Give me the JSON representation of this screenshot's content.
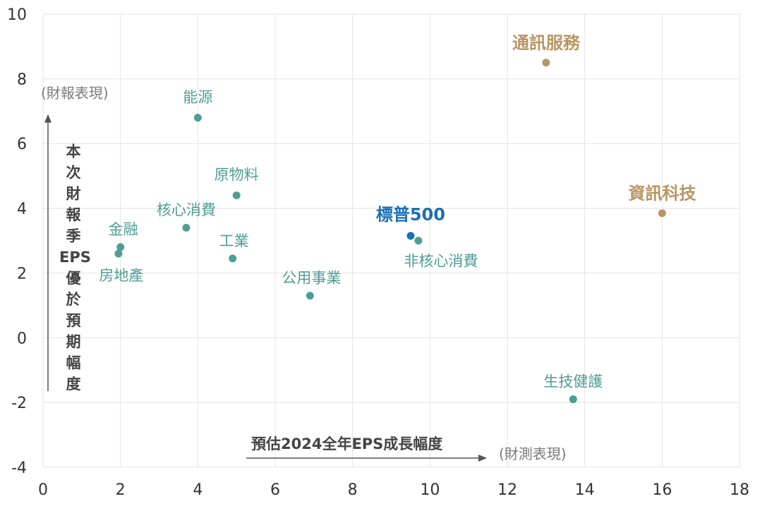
{
  "chart_data": {
    "type": "scatter",
    "xlabel": "預估2024全年EPS成長幅度",
    "xlabel_note": "(財測表現)",
    "ylabel": "本次財報季EPS優於預期幅度",
    "ylabel_note": "(財報表現)",
    "xlim": [
      0,
      18
    ],
    "ylim": [
      -4,
      10
    ],
    "x_ticks": [
      "0",
      "2",
      "4",
      "6",
      "8",
      "10",
      "12",
      "14",
      "16",
      "18"
    ],
    "y_ticks": [
      "10",
      "8",
      "6",
      "4",
      "2",
      "0",
      "-2",
      "-4"
    ],
    "grid": true,
    "colors": {
      "sector": "#4f9e94",
      "highlight": "#b99564",
      "index": "#1b6fb5"
    },
    "points": [
      {
        "label": "能源",
        "x": 4.0,
        "y": 6.8,
        "group": "sector"
      },
      {
        "label": "原物料",
        "x": 5.0,
        "y": 4.4,
        "group": "sector"
      },
      {
        "label": "核心消費",
        "x": 3.7,
        "y": 3.4,
        "group": "sector"
      },
      {
        "label": "金融",
        "x": 2.0,
        "y": 2.8,
        "group": "sector"
      },
      {
        "label": "房地產",
        "x": 1.95,
        "y": 2.6,
        "group": "sector"
      },
      {
        "label": "工業",
        "x": 4.9,
        "y": 2.45,
        "group": "sector"
      },
      {
        "label": "公用事業",
        "x": 6.9,
        "y": 1.3,
        "group": "sector"
      },
      {
        "label": "標普500",
        "x": 9.5,
        "y": 3.15,
        "group": "index"
      },
      {
        "label": "非核心消費",
        "x": 9.7,
        "y": 3.0,
        "group": "sector"
      },
      {
        "label": "通訊服務",
        "x": 13.0,
        "y": 8.5,
        "group": "highlight"
      },
      {
        "label": "資訊科技",
        "x": 16.0,
        "y": 3.85,
        "group": "highlight"
      },
      {
        "label": "生技健護",
        "x": 13.7,
        "y": -1.9,
        "group": "sector"
      }
    ]
  }
}
